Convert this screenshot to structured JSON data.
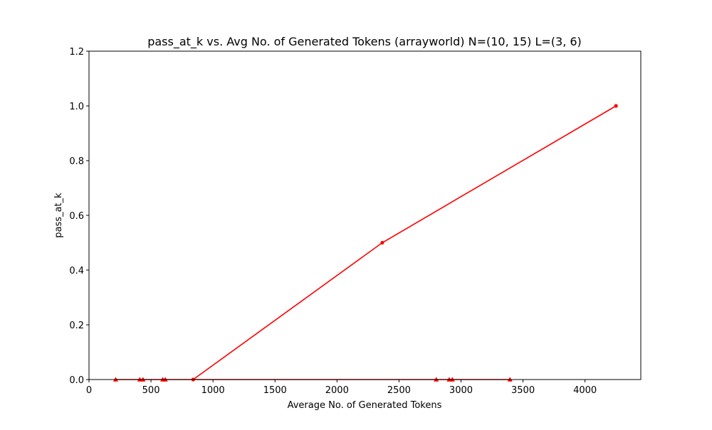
{
  "chart_data": {
    "type": "line",
    "title": "pass_at_k vs. Avg No. of Generated Tokens (arrayworld) N=(10, 15) L=(3, 6)",
    "xlabel": "Average No. of Generated Tokens",
    "ylabel": "pass_at_k",
    "xlim": [
      0,
      4450
    ],
    "ylim": [
      0,
      1.2
    ],
    "xticks": [
      "0",
      "500",
      "1000",
      "1500",
      "2000",
      "2500",
      "3000",
      "3500",
      "4000"
    ],
    "yticks": [
      "0.0",
      "0.2",
      "0.4",
      "0.6",
      "0.8",
      "1.0",
      "1.2"
    ],
    "grid": false,
    "series": [
      {
        "color": "#ff0000",
        "marker": "circle",
        "x": [
          840,
          2365,
          4250
        ],
        "y": [
          0.0,
          0.5,
          1.0
        ]
      },
      {
        "color": "#ff0000",
        "marker": "triangle",
        "x": [
          215,
          410,
          435,
          595,
          615,
          2800,
          2905,
          2930,
          3395
        ],
        "y": [
          0,
          0,
          0,
          0,
          0,
          0,
          0,
          0,
          0
        ]
      }
    ]
  }
}
